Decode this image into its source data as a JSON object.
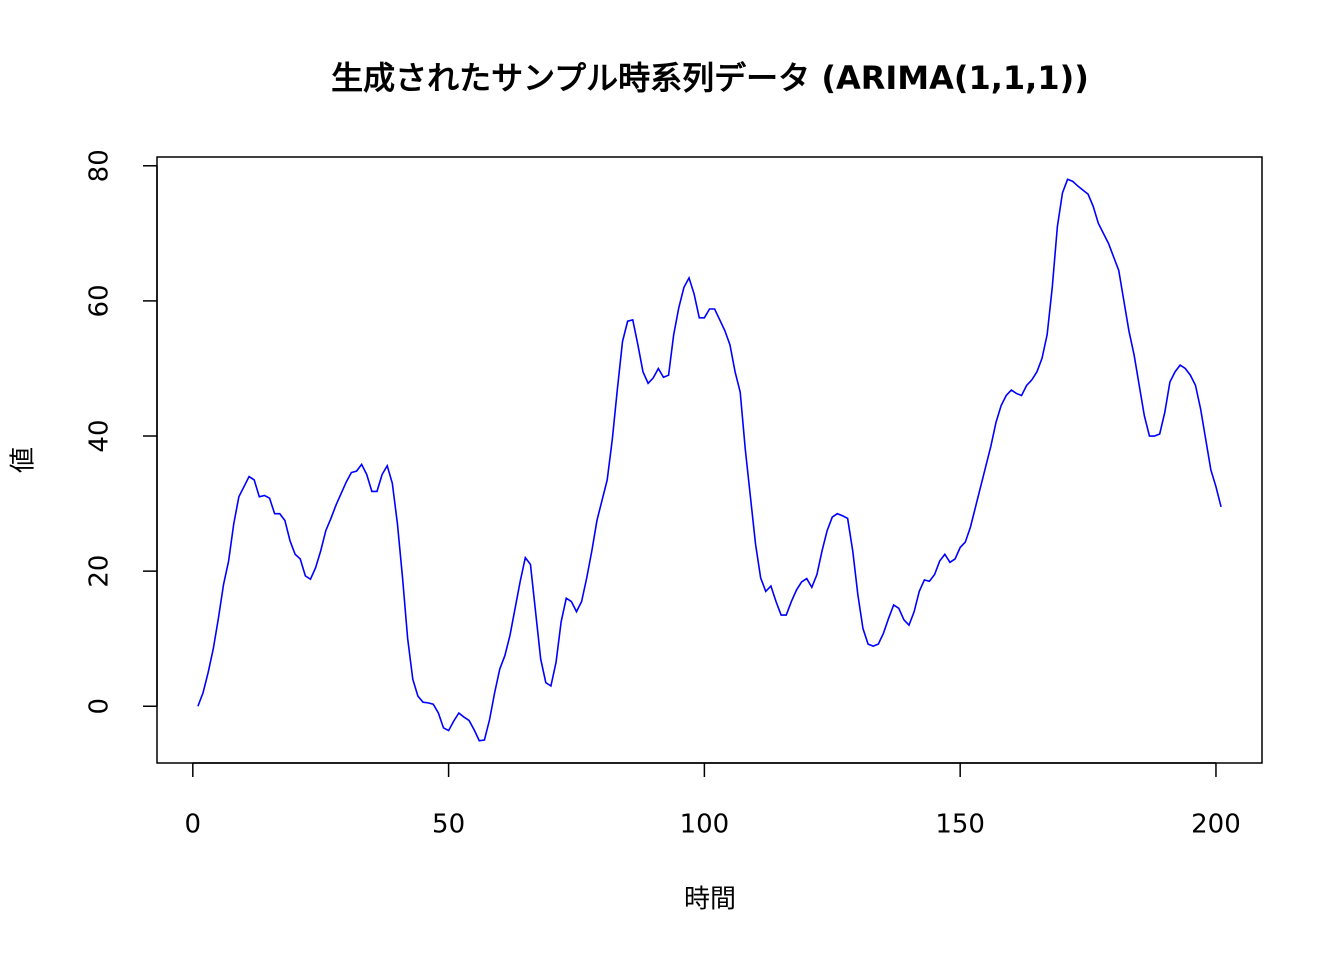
{
  "chart_data": {
    "type": "line",
    "title": "生成されたサンプル時系列データ (ARIMA(1,1,1))",
    "x_label": "時間",
    "y_label": "値",
    "x": [
      1,
      2,
      3,
      4,
      5,
      6,
      7,
      8,
      9,
      10,
      11,
      12,
      13,
      14,
      15,
      16,
      17,
      18,
      19,
      20,
      21,
      22,
      23,
      24,
      25,
      26,
      27,
      28,
      29,
      30,
      31,
      32,
      33,
      34,
      35,
      36,
      37,
      38,
      39,
      40,
      41,
      42,
      43,
      44,
      45,
      46,
      47,
      48,
      49,
      50,
      51,
      52,
      53,
      54,
      55,
      56,
      57,
      58,
      59,
      60,
      61,
      62,
      63,
      64,
      65,
      66,
      67,
      68,
      69,
      70,
      71,
      72,
      73,
      74,
      75,
      76,
      77,
      78,
      79,
      80,
      81,
      82,
      83,
      84,
      85,
      86,
      87,
      88,
      89,
      90,
      91,
      92,
      93,
      94,
      95,
      96,
      97,
      98,
      99,
      100,
      101,
      102,
      103,
      104,
      105,
      106,
      107,
      108,
      109,
      110,
      111,
      112,
      113,
      114,
      115,
      116,
      117,
      118,
      119,
      120,
      121,
      122,
      123,
      124,
      125,
      126,
      127,
      128,
      129,
      130,
      131,
      132,
      133,
      134,
      135,
      136,
      137,
      138,
      139,
      140,
      141,
      142,
      143,
      144,
      145,
      146,
      147,
      148,
      149,
      150,
      151,
      152,
      153,
      154,
      155,
      156,
      157,
      158,
      159,
      160,
      161,
      162,
      163,
      164,
      165,
      166,
      167,
      168,
      169,
      170,
      171,
      172,
      173,
      174,
      175,
      176,
      177,
      178,
      179,
      180,
      181,
      182,
      183,
      184,
      185,
      186,
      187,
      188,
      189,
      190,
      191,
      192,
      193,
      194,
      195,
      196,
      197,
      198,
      199,
      200,
      201
    ],
    "series": [
      {
        "name": "値",
        "color": "#0000ff",
        "values": [
          0,
          2,
          5,
          8.5,
          13,
          18,
          21.5,
          27,
          31,
          32.5,
          34,
          33.5,
          31,
          31.2,
          30.8,
          28.5,
          28.5,
          27.5,
          24.5,
          22.5,
          21.8,
          19.3,
          18.8,
          20.5,
          23,
          26,
          27.8,
          29.8,
          31.5,
          33.2,
          34.6,
          34.8,
          35.8,
          34.3,
          31.8,
          31.8,
          34.3,
          35.6,
          33,
          27,
          19,
          10,
          4,
          1.5,
          0.6,
          0.5,
          0.3,
          -1,
          -3.2,
          -3.6,
          -2.2,
          -1,
          -1.6,
          -2.1,
          -3.5,
          -5.1,
          -5,
          -2,
          2,
          5.5,
          7.5,
          10.5,
          14.5,
          18.5,
          22,
          21,
          14,
          7,
          3.5,
          3,
          6.5,
          12.5,
          16,
          15.5,
          14,
          15.5,
          19,
          23,
          27.5,
          30.5,
          33.5,
          39.5,
          47,
          54,
          57,
          57.2,
          53.5,
          49.5,
          47.8,
          48.6,
          50,
          48.7,
          49,
          55,
          59,
          62,
          63.4,
          61,
          57.5,
          57.5,
          58.8,
          58.8,
          57.2,
          55.6,
          53.5,
          49.5,
          46.5,
          38,
          31,
          24,
          19,
          17,
          17.8,
          15.5,
          13.5,
          13.5,
          15.5,
          17.2,
          18.4,
          18.9,
          17.6,
          19.5,
          23,
          26,
          28,
          28.5,
          28.2,
          27.8,
          23,
          16.5,
          11.5,
          9.2,
          8.9,
          9.2,
          10.8,
          13,
          15,
          14.5,
          12.8,
          12,
          14,
          17,
          18.7,
          18.5,
          19.5,
          21.5,
          22.5,
          21.3,
          21.8,
          23.5,
          24.3,
          26.5,
          29.5,
          32.5,
          35.5,
          38.5,
          42,
          44.5,
          46,
          46.8,
          46.3,
          46,
          47.5,
          48.3,
          49.5,
          51.5,
          55,
          62,
          71,
          76,
          78,
          77.7,
          77,
          76.4,
          75.8,
          74,
          71.5,
          70,
          68.5,
          66.5,
          64.5,
          60,
          55.5,
          52,
          47.5,
          43,
          40,
          40,
          40.3,
          43.5,
          48,
          49.5,
          50.5,
          50,
          49,
          47.5,
          44,
          39.5,
          35,
          32.5,
          29.5
        ]
      }
    ],
    "xlim": [
      -7,
      209
    ],
    "ylim": [
      -8.4,
      81.3
    ],
    "xticks": [
      0,
      50,
      100,
      150,
      200
    ],
    "yticks": [
      0,
      20,
      40,
      60,
      80
    ]
  }
}
